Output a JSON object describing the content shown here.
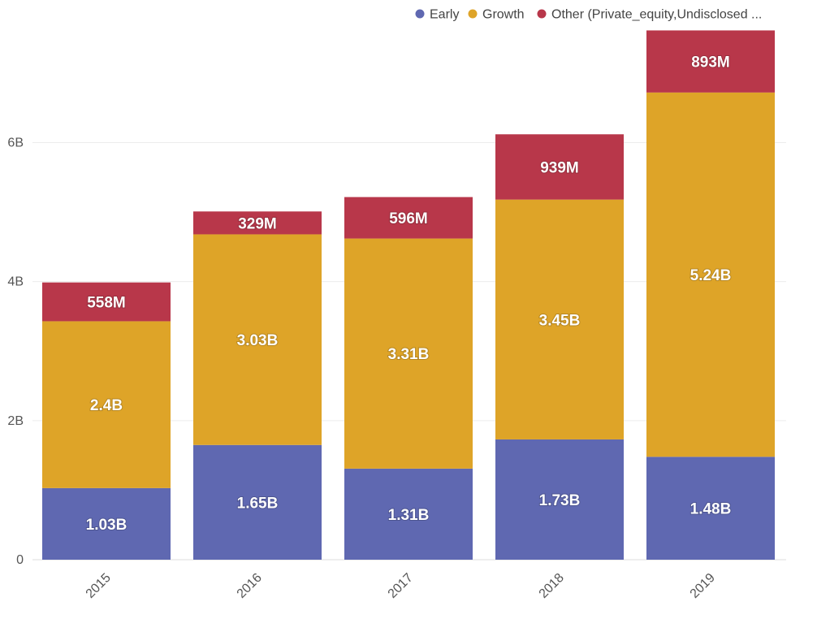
{
  "chart_data": {
    "type": "bar",
    "stacked": true,
    "categories": [
      "2015",
      "2016",
      "2017",
      "2018",
      "2019"
    ],
    "series": [
      {
        "name": "Early",
        "color": "#5f68b1",
        "values": [
          1030000000,
          1650000000,
          1310000000,
          1730000000,
          1480000000
        ],
        "labels": [
          "1.03B",
          "1.65B",
          "1.31B",
          "1.73B",
          "1.48B"
        ]
      },
      {
        "name": "Growth",
        "color": "#dea428",
        "values": [
          2400000000,
          3030000000,
          3310000000,
          3450000000,
          5240000000
        ],
        "labels": [
          "2.4B",
          "3.03B",
          "3.31B",
          "3.45B",
          "5.24B"
        ]
      },
      {
        "name": "Other (Private_equity,Undisclosed ...",
        "color": "#b8374a",
        "values": [
          558000000,
          329000000,
          596000000,
          939000000,
          893000000
        ],
        "labels": [
          "558M",
          "329M",
          "596M",
          "939M",
          "893M"
        ]
      }
    ],
    "y_ticks": [
      {
        "value": 0,
        "label": "0"
      },
      {
        "value": 2000000000,
        "label": "2B"
      },
      {
        "value": 4000000000,
        "label": "4B"
      },
      {
        "value": 6000000000,
        "label": "6B"
      }
    ],
    "ylim": [
      0,
      7700000000
    ],
    "grid": true,
    "legend_position": "top-right",
    "title": "",
    "xlabel": "",
    "ylabel": ""
  }
}
